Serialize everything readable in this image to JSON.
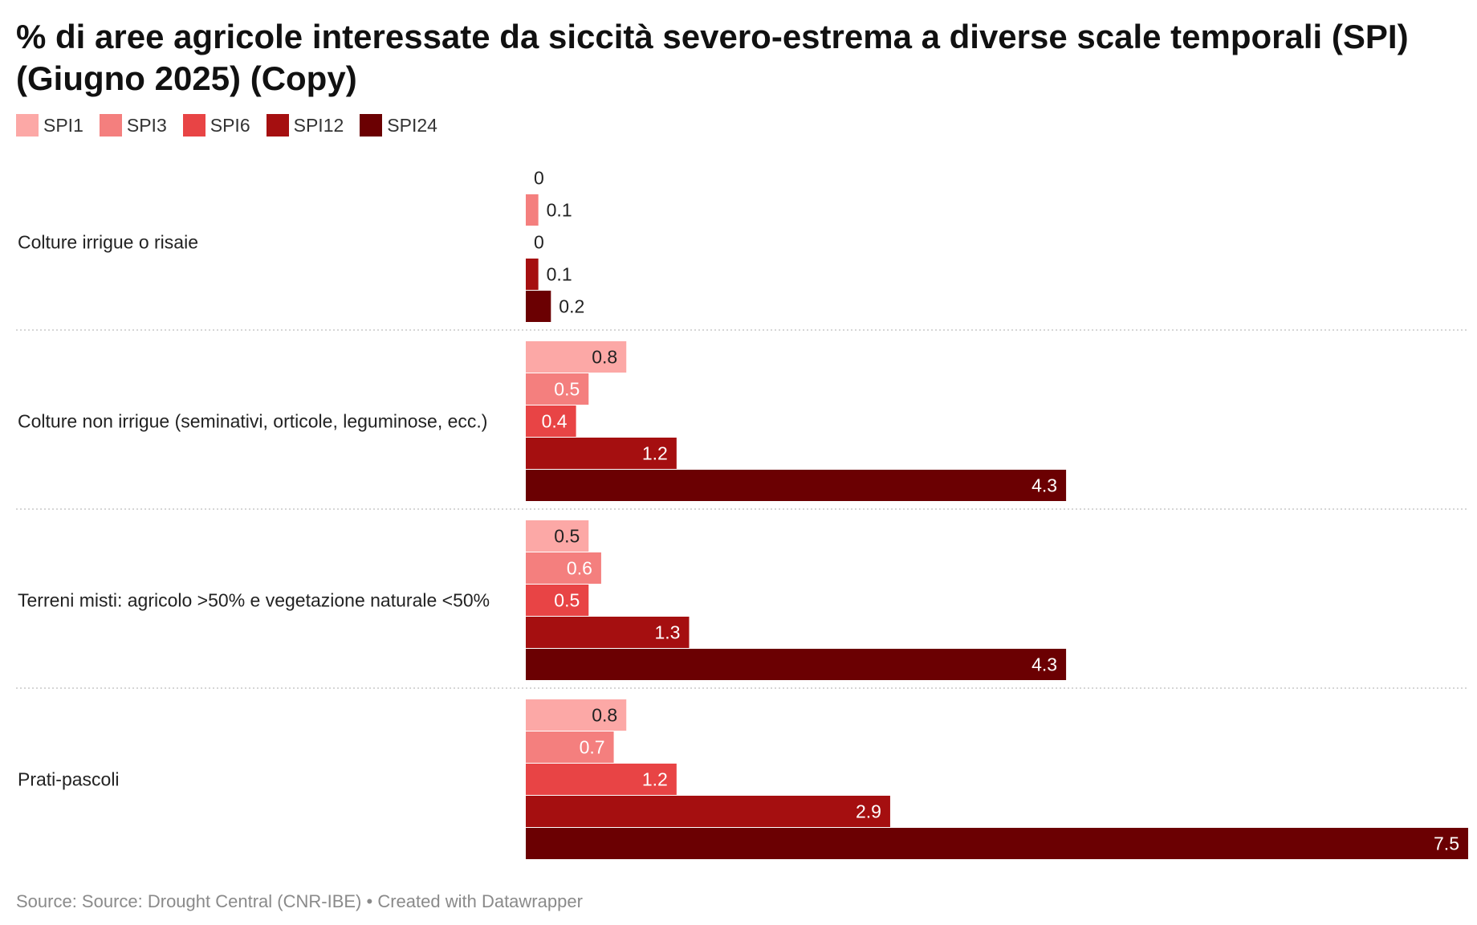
{
  "title": "% di aree agricole interessate da siccità severo-estrema a diverse scale temporali (SPI) (Giugno 2025) (Copy)",
  "footer": {
    "source_text": "Source: Source: Drought Central (CNR-IBE)",
    "separator": "•",
    "created_with": "Created with Datawrapper"
  },
  "colors": {
    "SPI1": "#fca8a6",
    "SPI3": "#f47f7e",
    "SPI6": "#e84445",
    "SPI12": "#a50f10",
    "SPI24": "#6b0002",
    "gridline": "#c8c8c8",
    "label_dark": "#222222",
    "label_light": "#ffffff"
  },
  "chart_data": {
    "type": "bar",
    "orientation": "horizontal",
    "grouped": true,
    "categories": [
      "Colture irrigue o risaie",
      "Colture non irrigue (seminativi, orticole, leguminose, ecc.)",
      "Terreni misti: agricolo >50% e vegetazione naturale <50%",
      "Prati-pascoli"
    ],
    "series": [
      {
        "name": "SPI1",
        "values": [
          0,
          0.8,
          0.5,
          0.8
        ]
      },
      {
        "name": "SPI3",
        "values": [
          0.1,
          0.5,
          0.6,
          0.7
        ]
      },
      {
        "name": "SPI6",
        "values": [
          0,
          0.4,
          0.5,
          1.2
        ]
      },
      {
        "name": "SPI12",
        "values": [
          0.1,
          1.2,
          1.3,
          2.9
        ]
      },
      {
        "name": "SPI24",
        "values": [
          0.2,
          4.3,
          4.3,
          7.5
        ]
      }
    ],
    "xlim": [
      0,
      7.5
    ],
    "legend_position": "top-left",
    "grid": false,
    "group_separators": "dotted"
  }
}
